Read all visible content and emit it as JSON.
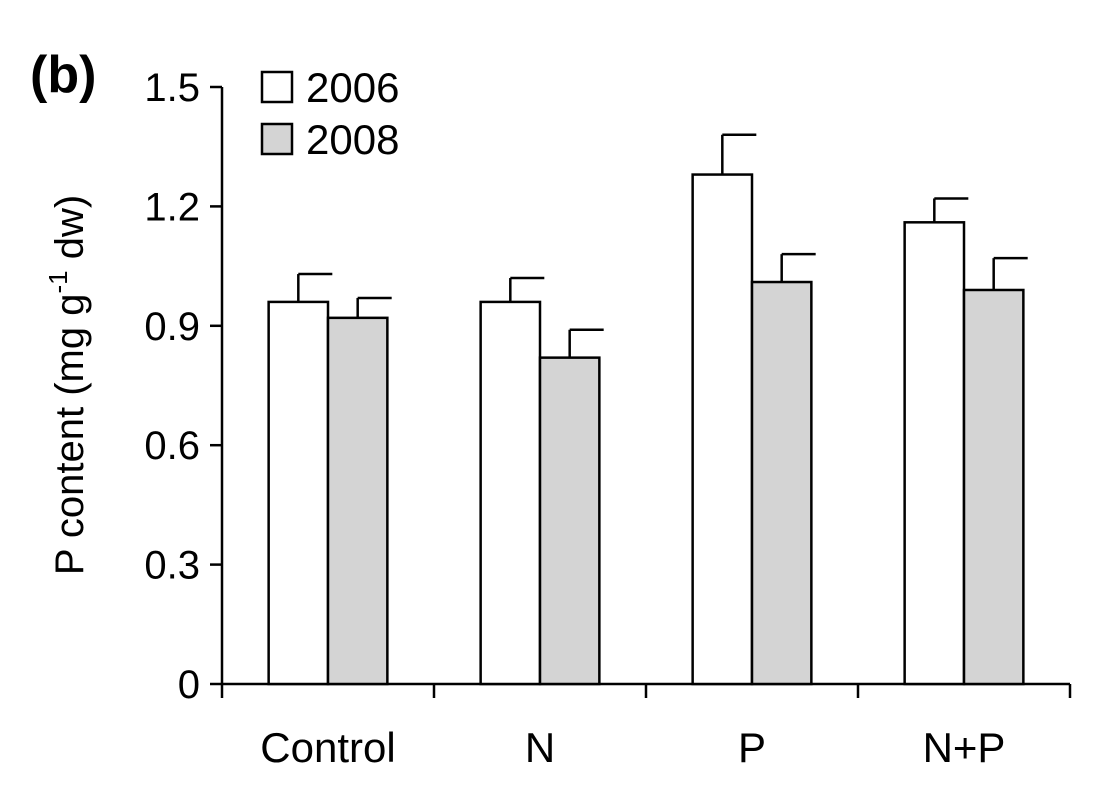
{
  "chart_data": {
    "type": "bar",
    "panel_label": "(b)",
    "ylabel": {
      "before": "P content (mg g",
      "superscript": "-1",
      "after": " dw)"
    },
    "categories": [
      "Control",
      "N",
      "P",
      "N+P"
    ],
    "series": [
      {
        "name": "2006",
        "color": "#ffffff",
        "values": [
          0.96,
          0.96,
          1.28,
          1.16
        ],
        "errors": [
          0.07,
          0.06,
          0.1,
          0.06
        ]
      },
      {
        "name": "2008",
        "color": "#d4d4d4",
        "values": [
          0.92,
          0.82,
          1.01,
          0.99
        ],
        "errors": [
          0.05,
          0.07,
          0.07,
          0.08
        ]
      }
    ],
    "yticks": [
      "0",
      "0.3",
      "0.6",
      "0.9",
      "1.2",
      "1.5"
    ],
    "ylim": [
      0,
      1.5
    ],
    "grid": false,
    "legend_position": "top-left"
  }
}
